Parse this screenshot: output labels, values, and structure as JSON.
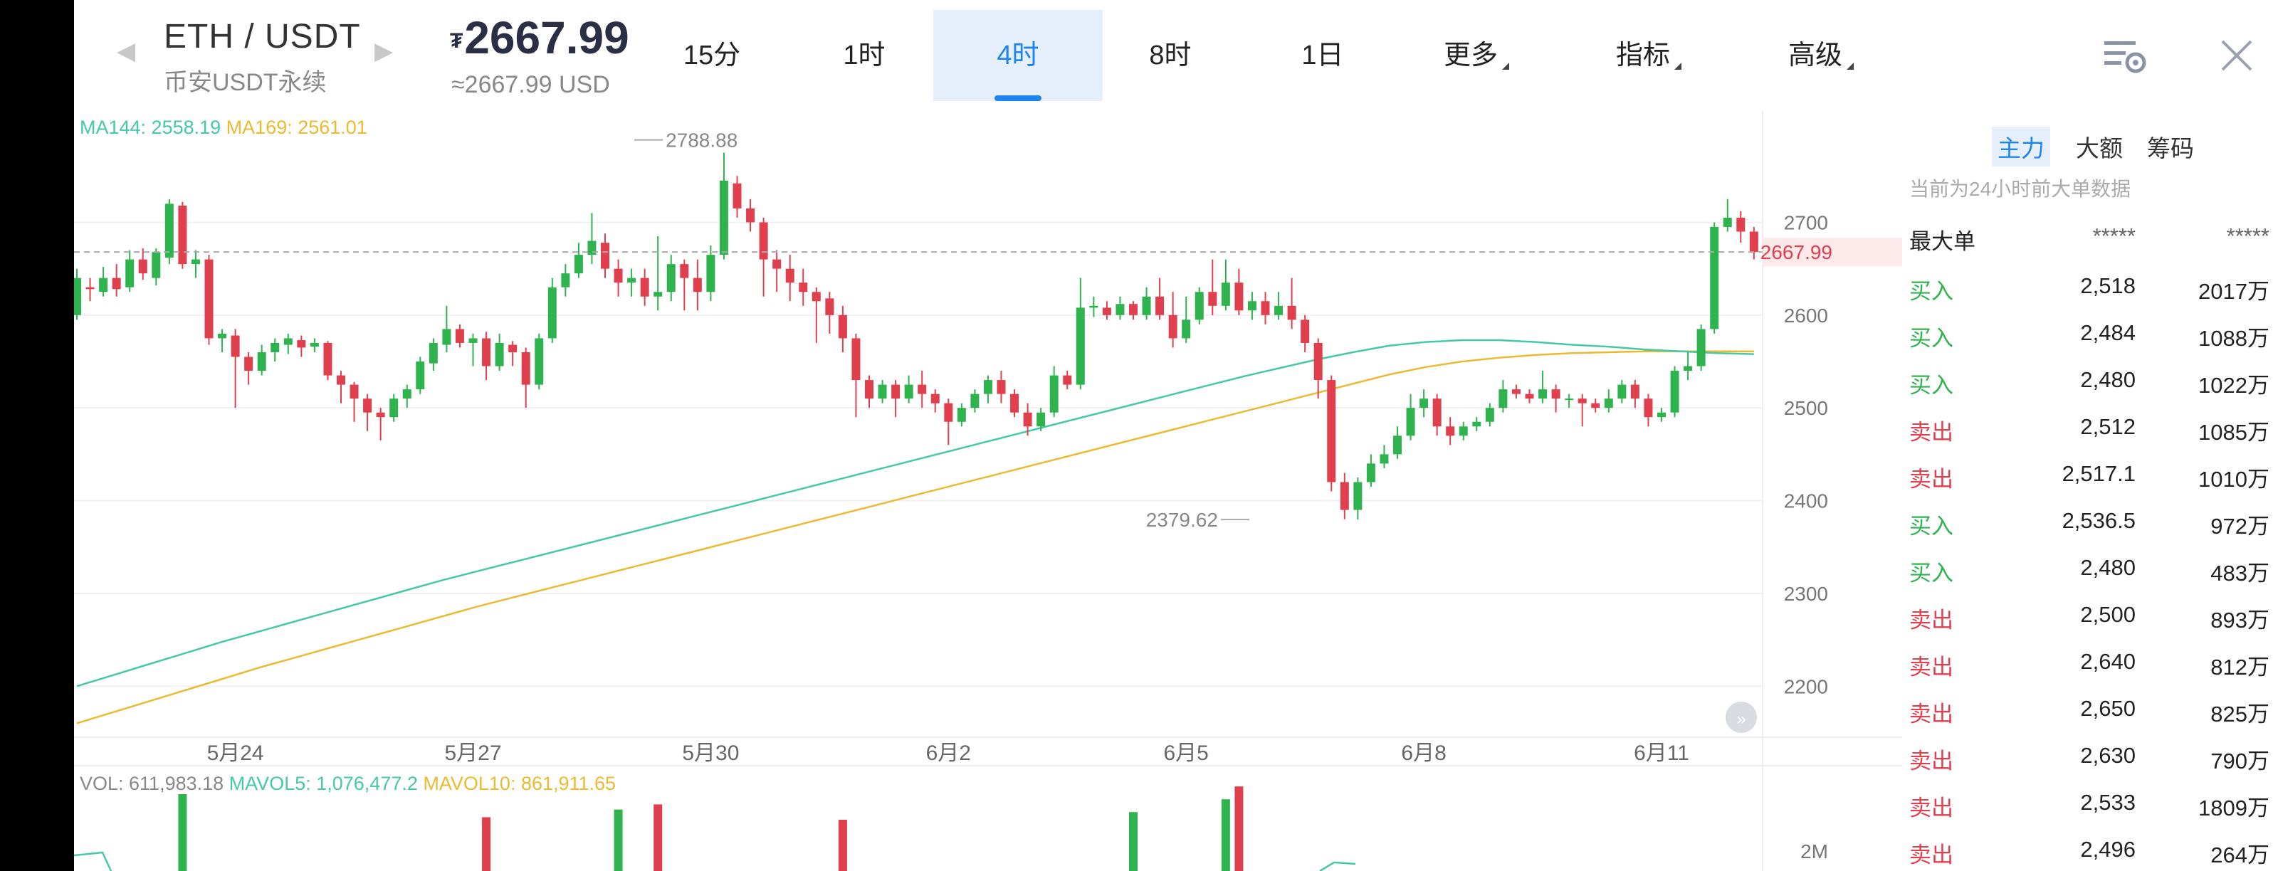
{
  "header": {
    "symbol": "ETH / USDT",
    "subname": "币安USDT永续",
    "currency_sign": "₮",
    "price": "2667.99",
    "usd_price": "≈2667.99 USD",
    "tabs": [
      {
        "label": "15分",
        "active": false
      },
      {
        "label": "1时",
        "active": false
      },
      {
        "label": "4时",
        "active": true
      },
      {
        "label": "8时",
        "active": false
      },
      {
        "label": "1日",
        "active": false
      },
      {
        "label": "更多",
        "active": false,
        "dropdown": true
      },
      {
        "label": "指标",
        "active": false,
        "dropdown": true
      },
      {
        "label": "高级",
        "active": false,
        "dropdown": true
      }
    ],
    "icons": [
      "chart-settings-icon",
      "close-icon"
    ]
  },
  "ma_legend": {
    "ma144": "MA144: 2558.19",
    "ma169": "MA169: 2561.01",
    "ma144_color": "#46c8a8",
    "ma169_color": "#ecba30"
  },
  "vol_legend": {
    "vol": "VOL: 611,983.18",
    "mavol5": "MAVOL5: 1,076,477.2",
    "mavol10": "MAVOL10: 861,911.65"
  },
  "chart_data": {
    "type": "candlestick",
    "y_ticks": [
      2700,
      2600,
      2500,
      2400,
      2300,
      2200
    ],
    "ylim": [
      2145,
      2820
    ],
    "x_ticks": [
      {
        "label": "5月24",
        "index": 12
      },
      {
        "label": "5月27",
        "index": 30
      },
      {
        "label": "5月30",
        "index": 48
      },
      {
        "label": "6月2",
        "index": 66
      },
      {
        "label": "6月5",
        "index": 84
      },
      {
        "label": "6月8",
        "index": 102
      },
      {
        "label": "6月11",
        "index": 120
      }
    ],
    "current_price": 2667.99,
    "current_price_label": "2667.99",
    "high_marker": {
      "index": 42,
      "value": 2788.88,
      "label": "2788.88"
    },
    "low_marker": {
      "index": 89,
      "value": 2379.62,
      "label": "2379.62"
    },
    "up_color": "#2fb34f",
    "down_color": "#e0404e",
    "candles": [
      [
        2600,
        2640,
        2595,
        2650
      ],
      [
        2630,
        2628,
        2615,
        2640
      ],
      [
        2625,
        2640,
        2620,
        2652
      ],
      [
        2640,
        2628,
        2620,
        2655
      ],
      [
        2630,
        2660,
        2625,
        2670
      ],
      [
        2660,
        2645,
        2638,
        2672
      ],
      [
        2640,
        2668,
        2632,
        2672
      ],
      [
        2662,
        2720,
        2655,
        2725
      ],
      [
        2718,
        2655,
        2650,
        2722
      ],
      [
        2655,
        2660,
        2640,
        2670
      ],
      [
        2660,
        2575,
        2568,
        2665
      ],
      [
        2575,
        2580,
        2560,
        2585
      ],
      [
        2578,
        2555,
        2500,
        2585
      ],
      [
        2555,
        2540,
        2525,
        2560
      ],
      [
        2540,
        2560,
        2535,
        2568
      ],
      [
        2560,
        2570,
        2550,
        2575
      ],
      [
        2568,
        2575,
        2558,
        2580
      ],
      [
        2573,
        2565,
        2555,
        2578
      ],
      [
        2566,
        2570,
        2560,
        2575
      ],
      [
        2570,
        2535,
        2530,
        2572
      ],
      [
        2535,
        2525,
        2505,
        2540
      ],
      [
        2525,
        2510,
        2485,
        2528
      ],
      [
        2510,
        2495,
        2475,
        2515
      ],
      [
        2495,
        2490,
        2465,
        2500
      ],
      [
        2490,
        2510,
        2485,
        2515
      ],
      [
        2510,
        2520,
        2500,
        2525
      ],
      [
        2520,
        2550,
        2515,
        2555
      ],
      [
        2548,
        2570,
        2540,
        2575
      ],
      [
        2568,
        2585,
        2560,
        2610
      ],
      [
        2585,
        2570,
        2565,
        2590
      ],
      [
        2570,
        2575,
        2545,
        2580
      ],
      [
        2575,
        2545,
        2530,
        2582
      ],
      [
        2545,
        2570,
        2540,
        2580
      ],
      [
        2568,
        2560,
        2545,
        2572
      ],
      [
        2560,
        2525,
        2500,
        2565
      ],
      [
        2525,
        2575,
        2520,
        2580
      ],
      [
        2575,
        2630,
        2570,
        2640
      ],
      [
        2630,
        2645,
        2620,
        2655
      ],
      [
        2645,
        2665,
        2640,
        2678
      ],
      [
        2665,
        2680,
        2655,
        2710
      ],
      [
        2678,
        2650,
        2640,
        2688
      ],
      [
        2650,
        2635,
        2620,
        2660
      ],
      [
        2635,
        2640,
        2620,
        2650
      ],
      [
        2640,
        2620,
        2610,
        2650
      ],
      [
        2620,
        2625,
        2605,
        2685
      ],
      [
        2625,
        2655,
        2615,
        2665
      ],
      [
        2655,
        2640,
        2605,
        2660
      ],
      [
        2640,
        2625,
        2605,
        2660
      ],
      [
        2625,
        2665,
        2615,
        2675
      ],
      [
        2665,
        2745,
        2660,
        2775
      ],
      [
        2742,
        2715,
        2705,
        2750
      ],
      [
        2715,
        2700,
        2690,
        2725
      ],
      [
        2700,
        2660,
        2620,
        2705
      ],
      [
        2660,
        2650,
        2625,
        2670
      ],
      [
        2650,
        2635,
        2615,
        2665
      ],
      [
        2635,
        2625,
        2610,
        2650
      ],
      [
        2625,
        2615,
        2570,
        2630
      ],
      [
        2618,
        2600,
        2580,
        2625
      ],
      [
        2600,
        2575,
        2560,
        2610
      ],
      [
        2575,
        2530,
        2490,
        2580
      ],
      [
        2530,
        2510,
        2500,
        2535
      ],
      [
        2510,
        2525,
        2505,
        2530
      ],
      [
        2525,
        2510,
        2490,
        2530
      ],
      [
        2510,
        2525,
        2505,
        2535
      ],
      [
        2525,
        2515,
        2500,
        2540
      ],
      [
        2515,
        2505,
        2495,
        2520
      ],
      [
        2505,
        2485,
        2460,
        2510
      ],
      [
        2485,
        2500,
        2480,
        2505
      ],
      [
        2500,
        2515,
        2495,
        2520
      ],
      [
        2515,
        2530,
        2505,
        2535
      ],
      [
        2530,
        2515,
        2505,
        2540
      ],
      [
        2515,
        2495,
        2490,
        2520
      ],
      [
        2495,
        2480,
        2470,
        2505
      ],
      [
        2480,
        2495,
        2475,
        2500
      ],
      [
        2495,
        2535,
        2490,
        2545
      ],
      [
        2535,
        2525,
        2520,
        2540
      ],
      [
        2525,
        2608,
        2520,
        2640
      ],
      [
        2608,
        2610,
        2598,
        2620
      ],
      [
        2608,
        2600,
        2595,
        2615
      ],
      [
        2600,
        2612,
        2595,
        2620
      ],
      [
        2612,
        2600,
        2595,
        2615
      ],
      [
        2600,
        2620,
        2595,
        2630
      ],
      [
        2620,
        2600,
        2595,
        2640
      ],
      [
        2600,
        2575,
        2565,
        2625
      ],
      [
        2575,
        2595,
        2570,
        2620
      ],
      [
        2595,
        2625,
        2590,
        2630
      ],
      [
        2625,
        2610,
        2600,
        2660
      ],
      [
        2610,
        2635,
        2605,
        2660
      ],
      [
        2635,
        2605,
        2600,
        2650
      ],
      [
        2605,
        2615,
        2595,
        2625
      ],
      [
        2615,
        2600,
        2590,
        2625
      ],
      [
        2600,
        2610,
        2595,
        2625
      ],
      [
        2610,
        2595,
        2585,
        2640
      ],
      [
        2595,
        2570,
        2560,
        2600
      ],
      [
        2570,
        2530,
        2510,
        2575
      ],
      [
        2530,
        2420,
        2410,
        2535
      ],
      [
        2420,
        2390,
        2380,
        2430
      ],
      [
        2390,
        2420,
        2379.62,
        2425
      ],
      [
        2420,
        2440,
        2415,
        2450
      ],
      [
        2440,
        2450,
        2435,
        2460
      ],
      [
        2450,
        2470,
        2445,
        2480
      ],
      [
        2470,
        2500,
        2465,
        2515
      ],
      [
        2500,
        2510,
        2490,
        2520
      ],
      [
        2510,
        2480,
        2470,
        2515
      ],
      [
        2480,
        2470,
        2460,
        2490
      ],
      [
        2470,
        2480,
        2465,
        2485
      ],
      [
        2480,
        2485,
        2475,
        2490
      ],
      [
        2485,
        2500,
        2480,
        2505
      ],
      [
        2500,
        2520,
        2495,
        2530
      ],
      [
        2520,
        2515,
        2510,
        2525
      ],
      [
        2515,
        2510,
        2505,
        2520
      ],
      [
        2510,
        2520,
        2505,
        2540
      ],
      [
        2520,
        2510,
        2495,
        2525
      ],
      [
        2510,
        2510,
        2500,
        2515
      ],
      [
        2510,
        2505,
        2480,
        2515
      ],
      [
        2505,
        2500,
        2495,
        2510
      ],
      [
        2500,
        2510,
        2495,
        2520
      ],
      [
        2510,
        2525,
        2505,
        2530
      ],
      [
        2525,
        2510,
        2500,
        2530
      ],
      [
        2510,
        2490,
        2480,
        2515
      ],
      [
        2490,
        2495,
        2485,
        2500
      ],
      [
        2495,
        2540,
        2490,
        2545
      ],
      [
        2540,
        2545,
        2530,
        2560
      ],
      [
        2545,
        2585,
        2540,
        2590
      ],
      [
        2585,
        2695,
        2580,
        2700
      ],
      [
        2695,
        2705,
        2690,
        2725
      ],
      [
        2705,
        2690,
        2678,
        2712
      ],
      [
        2690,
        2668,
        2660,
        2695
      ]
    ],
    "ma144": [
      2200,
      2212,
      2224,
      2236,
      2248,
      2259,
      2270,
      2281,
      2292,
      2303,
      2314,
      2324,
      2334,
      2344,
      2354,
      2364,
      2374,
      2384,
      2394,
      2404,
      2414,
      2424,
      2434,
      2444,
      2454,
      2464,
      2474,
      2484,
      2494,
      2504,
      2514,
      2524,
      2534,
      2543,
      2552,
      2560,
      2567,
      2571,
      2573,
      2573,
      2571,
      2568,
      2566,
      2563,
      2561,
      2559,
      2558
    ],
    "ma169": [
      2160,
      2172,
      2184,
      2196,
      2208,
      2220,
      2231,
      2242,
      2253,
      2264,
      2275,
      2286,
      2296,
      2306,
      2316,
      2326,
      2336,
      2346,
      2356,
      2366,
      2376,
      2386,
      2396,
      2406,
      2416,
      2426,
      2436,
      2446,
      2456,
      2466,
      2476,
      2486,
      2496,
      2506,
      2516,
      2526,
      2536,
      2544,
      2550,
      2554,
      2557,
      2559,
      2560,
      2561,
      2561,
      2561,
      2561
    ],
    "volume": {
      "label_2m": "2M",
      "bars": [
        {
          "index": 8,
          "value": 3.0,
          "up": true
        },
        {
          "index": 31,
          "value": 2.1,
          "up": false
        },
        {
          "index": 41,
          "value": 2.4,
          "up": true
        },
        {
          "index": 44,
          "value": 2.6,
          "up": false
        },
        {
          "index": 58,
          "value": 2.0,
          "up": false
        },
        {
          "index": 80,
          "value": 2.3,
          "up": true
        },
        {
          "index": 87,
          "value": 2.8,
          "up": true
        },
        {
          "index": 88,
          "value": 3.3,
          "up": false
        }
      ]
    }
  },
  "panel": {
    "tabs": [
      {
        "label": "主力",
        "active": true
      },
      {
        "label": "大额",
        "active": false
      },
      {
        "label": "筹码",
        "active": false
      }
    ],
    "note": "当前为24小时前大单数据",
    "header_row": [
      "最大单",
      "*****",
      "*****"
    ],
    "rows": [
      {
        "side": "买入",
        "price": "2,518",
        "amount": "2017万",
        "type": "buy"
      },
      {
        "side": "买入",
        "price": "2,484",
        "amount": "1088万",
        "type": "buy"
      },
      {
        "side": "买入",
        "price": "2,480",
        "amount": "1022万",
        "type": "buy"
      },
      {
        "side": "卖出",
        "price": "2,512",
        "amount": "1085万",
        "type": "sell"
      },
      {
        "side": "卖出",
        "price": "2,517.1",
        "amount": "1010万",
        "type": "sell"
      },
      {
        "side": "买入",
        "price": "2,536.5",
        "amount": "972万",
        "type": "buy"
      },
      {
        "side": "买入",
        "price": "2,480",
        "amount": "483万",
        "type": "buy"
      },
      {
        "side": "卖出",
        "price": "2,500",
        "amount": "893万",
        "type": "sell"
      },
      {
        "side": "卖出",
        "price": "2,640",
        "amount": "812万",
        "type": "sell"
      },
      {
        "side": "卖出",
        "price": "2,650",
        "amount": "825万",
        "type": "sell"
      },
      {
        "side": "卖出",
        "price": "2,630",
        "amount": "790万",
        "type": "sell"
      },
      {
        "side": "卖出",
        "price": "2,533",
        "amount": "1809万",
        "type": "sell"
      },
      {
        "side": "卖出",
        "price": "2,496",
        "amount": "264万",
        "type": "sell"
      }
    ]
  }
}
